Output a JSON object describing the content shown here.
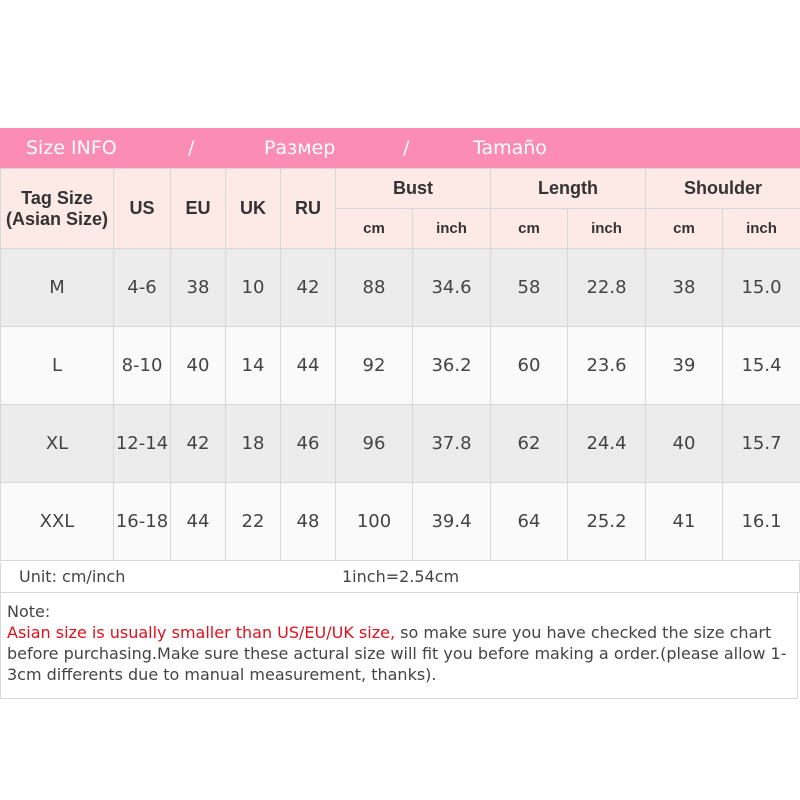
{
  "banner": {
    "size_info": "Size INFO",
    "sep1": "/",
    "ru": "Размер",
    "sep2": "/",
    "es": "Tamaño"
  },
  "header": {
    "tag_size": "Tag Size",
    "asian_size": "(Asian Size)",
    "us": "US",
    "eu": "EU",
    "uk": "UK",
    "ru": "RU",
    "bust": "Bust",
    "length": "Length",
    "shoulder": "Shoulder",
    "cm": "cm",
    "inch": "inch"
  },
  "rows": [
    [
      "M",
      "4-6",
      "38",
      "10",
      "42",
      "88",
      "34.6",
      "58",
      "22.8",
      "38",
      "15.0"
    ],
    [
      "L",
      "8-10",
      "40",
      "14",
      "44",
      "92",
      "36.2",
      "60",
      "23.6",
      "39",
      "15.4"
    ],
    [
      "XL",
      "12-14",
      "42",
      "18",
      "46",
      "96",
      "37.8",
      "62",
      "24.4",
      "40",
      "15.7"
    ],
    [
      "XXL",
      "16-18",
      "44",
      "22",
      "48",
      "100",
      "39.4",
      "64",
      "25.2",
      "41",
      "16.1"
    ]
  ],
  "unit": {
    "label": "Unit: cm/inch",
    "conversion": "1inch=2.54cm"
  },
  "note": {
    "title": "Note:",
    "warning": "Asian size is usually smaller than US/EU/UK size,",
    "text": " so make sure you have checked the size chart before purchasing.Make sure these actural size will fit you before making a order.(please allow 1-3cm  differents due to manual measurement, thanks)."
  },
  "colors": {
    "banner": "#fb8db5",
    "header_bg": "#fde9e6",
    "warning": "#e0101a"
  }
}
